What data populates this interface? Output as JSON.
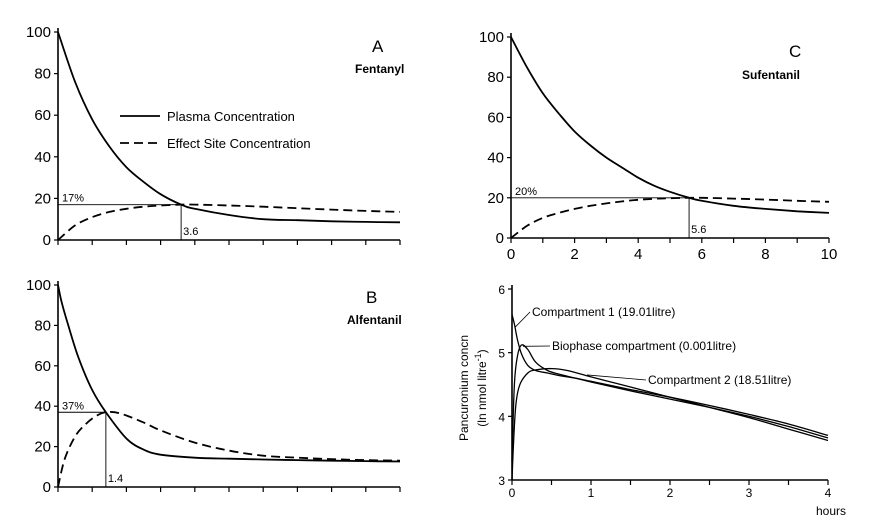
{
  "chart_data": [
    {
      "id": "A",
      "type": "line",
      "letter": "A",
      "drug": "Fentanyl",
      "ylim": [
        0,
        100
      ],
      "yticks": [
        "0",
        "20",
        "40",
        "60",
        "80",
        "100"
      ],
      "xlim": [
        0,
        10
      ],
      "x_tick_labels": [],
      "legend": {
        "plasma": "Plasma Concentration",
        "effect": "Effect Site Concentration"
      },
      "peak": {
        "percent_label": "17%",
        "percent": 17,
        "time_label": "3.6",
        "time": 3.6
      },
      "series": [
        {
          "name": "Plasma Concentration",
          "style": "solid",
          "x": [
            0,
            0.5,
            1,
            1.5,
            2,
            2.5,
            3,
            3.6,
            4,
            5,
            6,
            7,
            8,
            9,
            10
          ],
          "y": [
            100,
            76,
            58,
            45,
            35,
            28,
            22,
            17,
            15,
            12,
            10,
            9.5,
            9,
            8.7,
            8.5
          ]
        },
        {
          "name": "Effect Site Concentration",
          "style": "dashed",
          "x": [
            0,
            0.5,
            1,
            1.5,
            2,
            2.5,
            3,
            3.6,
            4,
            5,
            6,
            7,
            8,
            9,
            10
          ],
          "y": [
            0,
            7,
            11,
            13.5,
            15,
            16,
            16.6,
            17,
            17,
            16.6,
            16,
            15.3,
            14.6,
            14,
            13.5
          ]
        }
      ]
    },
    {
      "id": "B",
      "type": "line",
      "letter": "B",
      "drug": "Alfentanil",
      "ylim": [
        0,
        100
      ],
      "yticks": [
        "0",
        "20",
        "40",
        "60",
        "80",
        "100"
      ],
      "xlim": [
        0,
        10
      ],
      "x_tick_labels": [],
      "peak": {
        "percent_label": "37%",
        "percent": 37,
        "time_label": "1.4",
        "time": 1.4
      },
      "series": [
        {
          "name": "Plasma Concentration",
          "style": "solid",
          "x": [
            0,
            0.1,
            0.3,
            0.6,
            1,
            1.4,
            2,
            2.5,
            3,
            4,
            5,
            6,
            7,
            8,
            9,
            10
          ],
          "y": [
            100,
            92,
            80,
            64,
            48,
            37,
            24,
            18.5,
            16,
            14.5,
            14,
            13.6,
            13.3,
            13,
            12.8,
            12.6
          ]
        },
        {
          "name": "Effect Site Concentration",
          "style": "dashed",
          "x": [
            0,
            0.2,
            0.5,
            0.8,
            1.1,
            1.4,
            1.8,
            2.5,
            3,
            4,
            5,
            6,
            7,
            8,
            9,
            10
          ],
          "y": [
            0,
            14,
            25,
            31,
            35,
            37,
            36.5,
            32,
            28,
            22,
            18,
            15.5,
            14.5,
            13.8,
            13.3,
            13
          ]
        }
      ]
    },
    {
      "id": "C",
      "type": "line",
      "letter": "C",
      "drug": "Sufentanil",
      "ylim": [
        0,
        100
      ],
      "yticks": [
        "0",
        "20",
        "40",
        "60",
        "80",
        "100"
      ],
      "xlim": [
        0,
        10
      ],
      "x_tick_labels": [
        "0",
        "2",
        "4",
        "6",
        "8",
        "10"
      ],
      "peak": {
        "percent_label": "20%",
        "percent": 20,
        "time_label": "5.6",
        "time": 5.6
      },
      "series": [
        {
          "name": "Plasma Concentration",
          "style": "solid",
          "x": [
            0,
            0.5,
            1,
            1.5,
            2,
            2.5,
            3,
            3.5,
            4,
            4.5,
            5,
            5.6,
            6,
            7,
            8,
            9,
            10
          ],
          "y": [
            100,
            85,
            72,
            62,
            53,
            46,
            40,
            35,
            30,
            26,
            23,
            20,
            18.5,
            16,
            14.5,
            13.3,
            12.5
          ]
        },
        {
          "name": "Effect Site Concentration",
          "style": "dashed",
          "x": [
            0,
            0.5,
            1,
            1.5,
            2,
            2.5,
            3,
            3.5,
            4,
            4.5,
            5,
            5.6,
            6,
            7,
            8,
            9,
            10
          ],
          "y": [
            0,
            6,
            10,
            12.5,
            14.5,
            16,
            17.2,
            18.2,
            19,
            19.5,
            19.8,
            20,
            20,
            19.6,
            19.1,
            18.5,
            18
          ]
        }
      ]
    },
    {
      "id": "D",
      "type": "line",
      "ylabel": "Pancuronium concn",
      "ylabel_line2_prefix": "(ln nmol litre",
      "ylabel_exponent": "-1",
      "ylabel_line2_suffix": ")",
      "xlabel": "hours",
      "ylim": [
        3,
        6
      ],
      "yticks": [
        "3",
        "4",
        "5",
        "6"
      ],
      "xlim": [
        0,
        4
      ],
      "x_tick_labels": [
        "0",
        "1",
        "2",
        "3",
        "4"
      ],
      "series": [
        {
          "name": "Compartment 1 (19.01litre)",
          "x": [
            0,
            0.03,
            0.07,
            0.12,
            0.2,
            0.3,
            0.45,
            0.6,
            0.8,
            1,
            1.5,
            2,
            2.5,
            3,
            3.5,
            4
          ],
          "y": [
            5.6,
            5.45,
            5.2,
            4.98,
            4.8,
            4.72,
            4.68,
            4.64,
            4.6,
            4.55,
            4.42,
            4.3,
            4.17,
            4.03,
            3.88,
            3.7
          ]
        },
        {
          "name": "Biophase compartment (0.001litre)",
          "x": [
            0,
            0.03,
            0.07,
            0.12,
            0.2,
            0.3,
            0.45,
            0.6,
            0.8,
            1,
            1.5,
            2,
            2.5,
            3,
            3.5,
            4
          ],
          "y": [
            3.3,
            4.5,
            4.95,
            5.12,
            5.05,
            4.85,
            4.72,
            4.66,
            4.6,
            4.54,
            4.4,
            4.27,
            4.14,
            4.0,
            3.84,
            3.66
          ]
        },
        {
          "name": "Compartment 2 (18.51litre)",
          "x": [
            0,
            0.02,
            0.05,
            0.1,
            0.2,
            0.3,
            0.5,
            0.7,
            1,
            1.5,
            2,
            2.5,
            3,
            3.5,
            4
          ],
          "y": [
            3.0,
            3.6,
            4.2,
            4.5,
            4.68,
            4.73,
            4.75,
            4.72,
            4.62,
            4.46,
            4.3,
            4.14,
            3.98,
            3.8,
            3.62
          ]
        }
      ]
    }
  ]
}
